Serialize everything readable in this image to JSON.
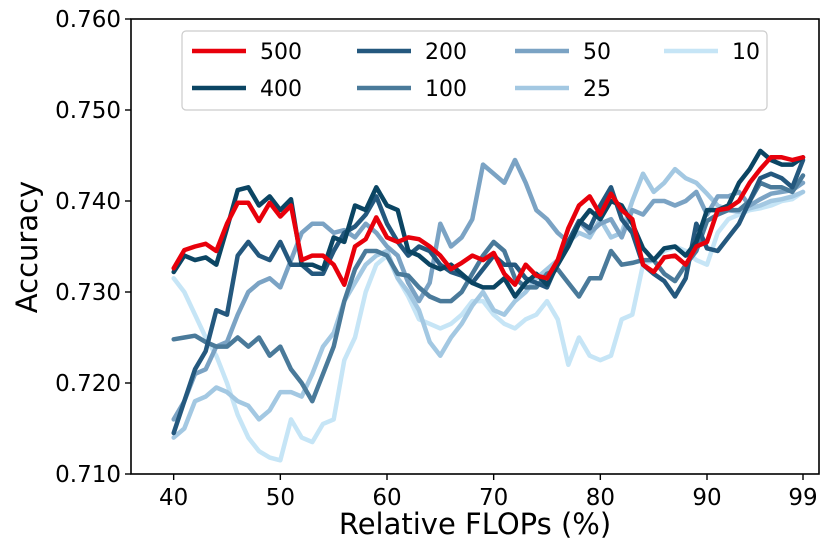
{
  "chart_data": {
    "type": "line",
    "title": "",
    "xlabel": "Relative FLOPs (%)",
    "ylabel": "Accuracy",
    "xlim": [
      36,
      100.5
    ],
    "ylim": [
      0.71,
      0.76
    ],
    "xticks": [
      40,
      50,
      60,
      70,
      80,
      90,
      99
    ],
    "xtick_labels": [
      "40",
      "50",
      "60",
      "70",
      "80",
      "90",
      "99"
    ],
    "yticks": [
      0.71,
      0.72,
      0.73,
      0.74,
      0.75,
      0.76
    ],
    "ytick_labels": [
      "0.710",
      "0.720",
      "0.730",
      "0.740",
      "0.750",
      "0.760"
    ],
    "grid": false,
    "legend_position": "top",
    "legend_columns": 4,
    "x": [
      40,
      41,
      42,
      43,
      44,
      45,
      46,
      47,
      48,
      49,
      50,
      51,
      52,
      53,
      54,
      55,
      56,
      57,
      58,
      59,
      60,
      61,
      62,
      63,
      64,
      65,
      66,
      67,
      68,
      69,
      70,
      71,
      72,
      73,
      74,
      75,
      76,
      77,
      78,
      79,
      80,
      81,
      82,
      83,
      84,
      85,
      86,
      87,
      88,
      89,
      90,
      91,
      92,
      93,
      94,
      95,
      96,
      97,
      98,
      99
    ],
    "series": [
      {
        "name": "500",
        "color": "#e8000b",
        "values": [
          0.7326,
          0.7346,
          0.735,
          0.7353,
          0.7345,
          0.7375,
          0.7398,
          0.7398,
          0.7378,
          0.7398,
          0.7383,
          0.7395,
          0.7335,
          0.734,
          0.734,
          0.733,
          0.7308,
          0.735,
          0.7358,
          0.7382,
          0.736,
          0.7355,
          0.736,
          0.7358,
          0.735,
          0.734,
          0.7325,
          0.7332,
          0.734,
          0.7335,
          0.7343,
          0.732,
          0.7308,
          0.733,
          0.7318,
          0.7315,
          0.7335,
          0.737,
          0.7395,
          0.7405,
          0.7385,
          0.7408,
          0.739,
          0.738,
          0.733,
          0.7322,
          0.7338,
          0.734,
          0.733,
          0.735,
          0.7355,
          0.739,
          0.7392,
          0.74,
          0.742,
          0.7435,
          0.7448,
          0.7448,
          0.7445,
          0.7448
        ]
      },
      {
        "name": "400",
        "color": "#0b4563",
        "values": [
          0.7322,
          0.734,
          0.7335,
          0.7338,
          0.733,
          0.737,
          0.7412,
          0.7415,
          0.7395,
          0.7405,
          0.739,
          0.7402,
          0.733,
          0.733,
          0.7325,
          0.736,
          0.7355,
          0.7395,
          0.739,
          0.7415,
          0.7395,
          0.739,
          0.7345,
          0.734,
          0.733,
          0.7325,
          0.733,
          0.732,
          0.731,
          0.7305,
          0.7305,
          0.7315,
          0.7295,
          0.731,
          0.732,
          0.7308,
          0.733,
          0.735,
          0.7375,
          0.739,
          0.738,
          0.74,
          0.7395,
          0.7375,
          0.7348,
          0.7335,
          0.7348,
          0.735,
          0.734,
          0.7355,
          0.739,
          0.739,
          0.7395,
          0.742,
          0.7435,
          0.7455,
          0.7445,
          0.744,
          0.744,
          0.7448
        ]
      },
      {
        "name": "200",
        "color": "#24587e",
        "values": [
          0.7145,
          0.718,
          0.7215,
          0.7235,
          0.728,
          0.7275,
          0.734,
          0.7355,
          0.734,
          0.7335,
          0.7355,
          0.733,
          0.733,
          0.732,
          0.732,
          0.7345,
          0.7365,
          0.7372,
          0.7385,
          0.7405,
          0.7375,
          0.7355,
          0.734,
          0.735,
          0.7345,
          0.733,
          0.7322,
          0.7318,
          0.731,
          0.7325,
          0.734,
          0.733,
          0.733,
          0.7315,
          0.731,
          0.7305,
          0.7332,
          0.7355,
          0.7378,
          0.737,
          0.7395,
          0.7415,
          0.738,
          0.7365,
          0.733,
          0.732,
          0.7312,
          0.7295,
          0.7315,
          0.7375,
          0.7348,
          0.7345,
          0.736,
          0.7375,
          0.74,
          0.7425,
          0.743,
          0.7425,
          0.7415,
          0.7445
        ]
      },
      {
        "name": "100",
        "color": "#4a7a9a",
        "values": [
          0.7248,
          0.725,
          0.7252,
          0.7245,
          0.724,
          0.724,
          0.725,
          0.724,
          0.725,
          0.723,
          0.724,
          0.7215,
          0.72,
          0.718,
          0.721,
          0.724,
          0.729,
          0.7325,
          0.7345,
          0.7345,
          0.734,
          0.732,
          0.7318,
          0.7305,
          0.7295,
          0.729,
          0.729,
          0.73,
          0.732,
          0.734,
          0.7355,
          0.7345,
          0.7315,
          0.7305,
          0.7305,
          0.732,
          0.7325,
          0.731,
          0.7295,
          0.7315,
          0.7315,
          0.7345,
          0.733,
          0.7332,
          0.7335,
          0.7335,
          0.732,
          0.7312,
          0.733,
          0.7345,
          0.7378,
          0.7385,
          0.739,
          0.739,
          0.74,
          0.742,
          0.7415,
          0.7415,
          0.741,
          0.7428
        ]
      },
      {
        "name": "50",
        "color": "#7ba3c4",
        "values": [
          0.716,
          0.718,
          0.721,
          0.7215,
          0.724,
          0.7245,
          0.7275,
          0.73,
          0.731,
          0.7315,
          0.7305,
          0.7335,
          0.7365,
          0.7375,
          0.7375,
          0.7365,
          0.7368,
          0.736,
          0.7375,
          0.7365,
          0.735,
          0.734,
          0.731,
          0.729,
          0.731,
          0.7375,
          0.735,
          0.736,
          0.738,
          0.744,
          0.743,
          0.742,
          0.7445,
          0.742,
          0.739,
          0.738,
          0.7365,
          0.7355,
          0.7378,
          0.7365,
          0.7375,
          0.738,
          0.736,
          0.739,
          0.7385,
          0.74,
          0.74,
          0.7395,
          0.74,
          0.741,
          0.7385,
          0.7405,
          0.7405,
          0.741,
          0.7395,
          0.7402,
          0.7408,
          0.741,
          0.7412,
          0.742
        ]
      },
      {
        "name": "25",
        "color": "#a3c8e2",
        "values": [
          0.714,
          0.715,
          0.718,
          0.7185,
          0.7195,
          0.719,
          0.718,
          0.7175,
          0.716,
          0.717,
          0.719,
          0.719,
          0.7185,
          0.721,
          0.724,
          0.7255,
          0.729,
          0.731,
          0.733,
          0.734,
          0.7345,
          0.7315,
          0.73,
          0.728,
          0.7245,
          0.723,
          0.725,
          0.7265,
          0.7285,
          0.73,
          0.728,
          0.7275,
          0.729,
          0.73,
          0.7315,
          0.7325,
          0.7335,
          0.7355,
          0.7365,
          0.736,
          0.738,
          0.736,
          0.7365,
          0.74,
          0.743,
          0.741,
          0.742,
          0.7435,
          0.7425,
          0.742,
          0.7408,
          0.7395,
          0.739,
          0.7388,
          0.7392,
          0.7395,
          0.74,
          0.7402,
          0.7405,
          0.741
        ]
      },
      {
        "name": "10",
        "color": "#c6e5f6",
        "values": [
          0.7315,
          0.73,
          0.7275,
          0.725,
          0.723,
          0.72,
          0.7165,
          0.714,
          0.7125,
          0.7118,
          0.7115,
          0.716,
          0.714,
          0.7135,
          0.7155,
          0.716,
          0.7225,
          0.725,
          0.73,
          0.733,
          0.734,
          0.7315,
          0.7295,
          0.727,
          0.7265,
          0.726,
          0.7265,
          0.7275,
          0.729,
          0.729,
          0.7275,
          0.7265,
          0.726,
          0.727,
          0.7275,
          0.729,
          0.727,
          0.722,
          0.725,
          0.723,
          0.7225,
          0.723,
          0.727,
          0.7275,
          0.733,
          0.7335,
          0.7345,
          0.735,
          0.7345,
          0.7335,
          0.733,
          0.7365,
          0.738,
          0.7385,
          0.739,
          0.7392,
          0.7395,
          0.74,
          0.7402,
          0.741
        ]
      }
    ]
  }
}
